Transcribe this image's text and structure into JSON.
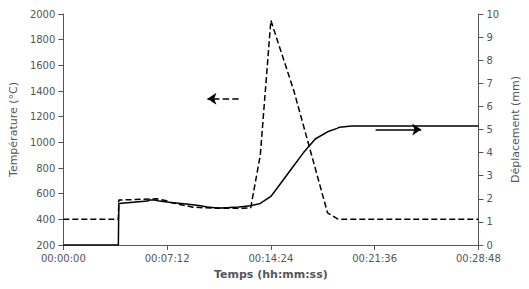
{
  "chart_data": {
    "type": "line",
    "xlabel": "Temps (hh:mm:ss)",
    "ylabel": "Température (°C)",
    "y2label": "Déplacement (mm)",
    "xlim": [
      0,
      1728
    ],
    "xticks": [
      {
        "value": 0,
        "label": "00:00:00"
      },
      {
        "value": 432,
        "label": "00:07:12"
      },
      {
        "value": 864,
        "label": "00:14:24"
      },
      {
        "value": 1296,
        "label": "00:21:36"
      },
      {
        "value": 1728,
        "label": "00:28:48"
      }
    ],
    "ylim": [
      200,
      2000
    ],
    "yticks": [
      200,
      400,
      600,
      800,
      1000,
      1200,
      1400,
      1600,
      1800,
      2000
    ],
    "y2lim": [
      0,
      10
    ],
    "y2ticks": [
      0,
      1,
      2,
      3,
      4,
      5,
      6,
      7,
      8,
      9,
      10
    ],
    "grid": false,
    "series": [
      {
        "x": [
          0,
          229,
          231,
          390,
          400,
          430,
          450,
          500,
          540,
          580,
          620,
          660,
          700,
          740,
          780,
          820,
          864,
          960,
          1100,
          1140,
          1150,
          1728
        ],
        "values": [
          400,
          400,
          550,
          560,
          555,
          545,
          530,
          510,
          495,
          490,
          488,
          487,
          486,
          487,
          490,
          900,
          1950,
          1400,
          450,
          405,
          400,
          400
        ],
        "color": "#000000",
        "line_style": "dashed"
      },
      {
        "x": [
          0,
          229,
          231,
          350,
          360,
          380,
          400,
          440,
          490,
          530,
          570,
          600,
          640,
          660,
          690,
          730,
          780,
          820,
          864,
          900,
          950,
          1000,
          1050,
          1100,
          1140,
          1150,
          1200,
          1728
        ],
        "values": [
          0,
          0,
          1.8,
          1.9,
          1.95,
          1.95,
          1.9,
          1.85,
          1.8,
          1.75,
          1.7,
          1.65,
          1.6,
          1.6,
          1.62,
          1.65,
          1.7,
          1.8,
          2.1,
          2.6,
          3.3,
          4.0,
          4.6,
          4.9,
          5.05,
          5.1,
          5.15,
          5.15
        ],
        "color": "#000000",
        "line_style": "solid",
        "axis": "y2"
      }
    ],
    "annotations": [
      {
        "type": "arrow",
        "x_start": 730,
        "x_end": 600,
        "y": 1340,
        "line_style": "dashed"
      },
      {
        "type": "arrow",
        "x_start": 1300,
        "x_end": 1490,
        "y": 5.0,
        "axis": "y2",
        "line_style": "solid"
      }
    ]
  }
}
